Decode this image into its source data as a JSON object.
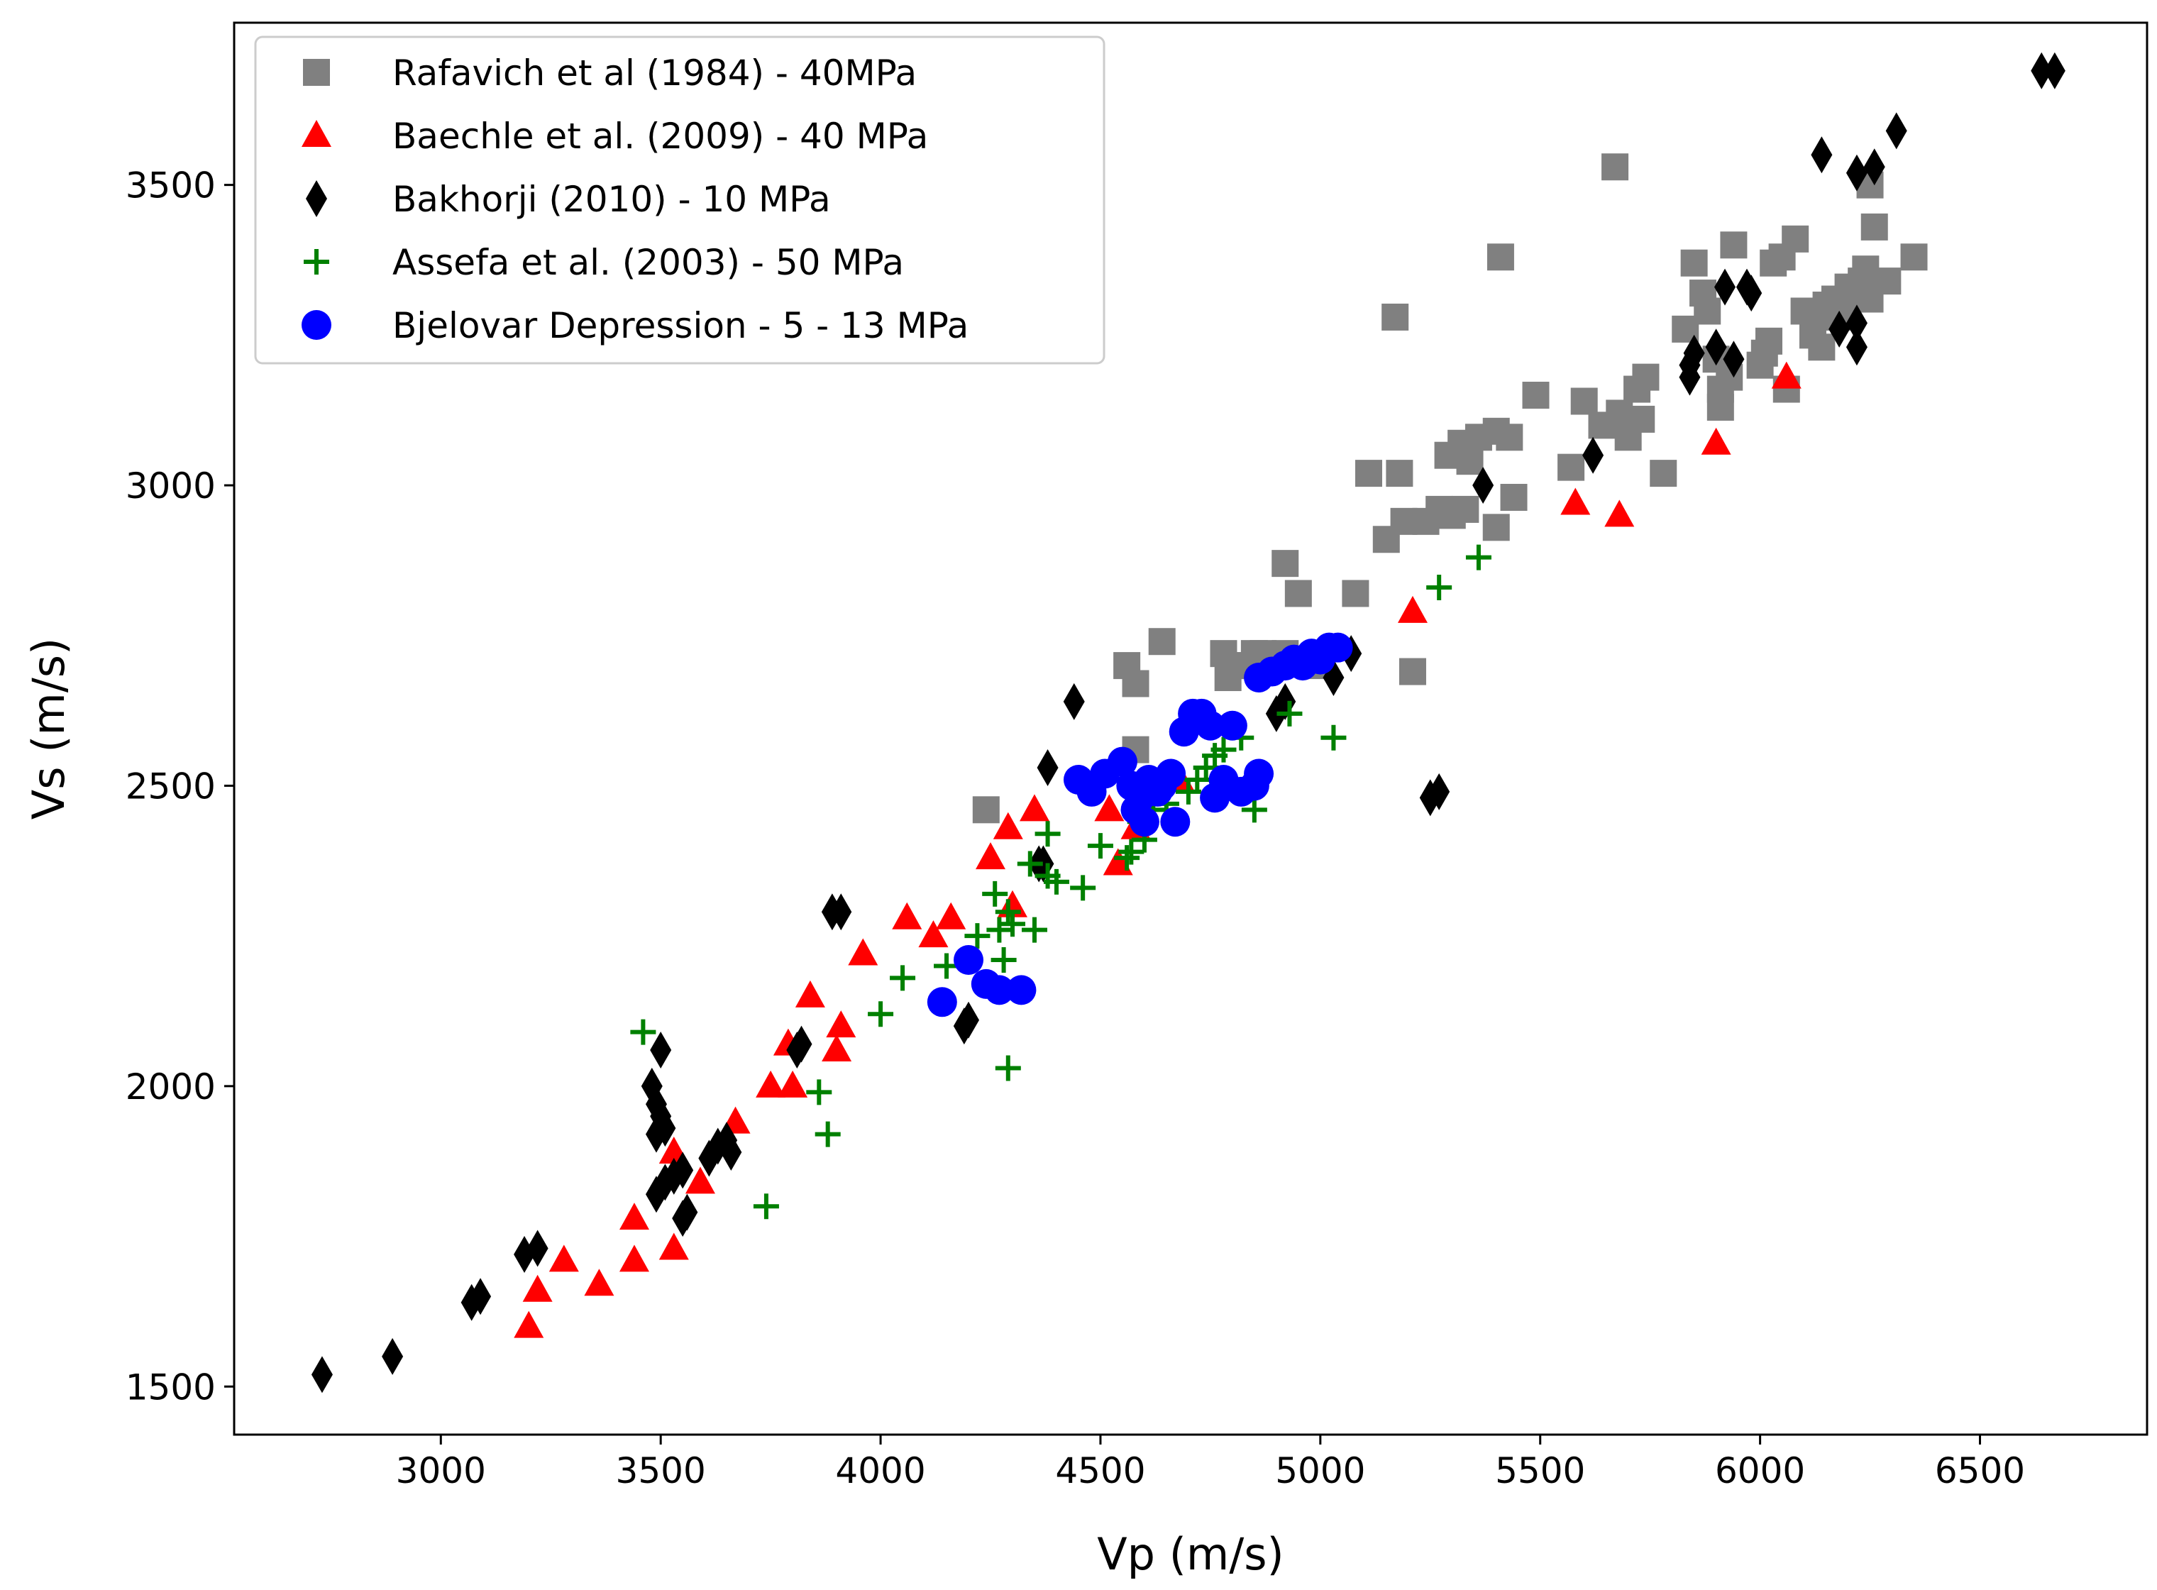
{
  "chart_data": {
    "type": "scatter",
    "title": "",
    "xlabel": "Vp (m/s)",
    "ylabel": "Vs (m/s)",
    "xlim": [
      2530,
      6880
    ],
    "ylim": [
      1420,
      3770
    ],
    "xticks": [
      3000,
      3500,
      4000,
      4500,
      5000,
      5500,
      6000,
      6500
    ],
    "yticks": [
      1500,
      2000,
      2500,
      3000,
      3500
    ],
    "legend_position": "top-left",
    "series": [
      {
        "name": "Rafavich et al (1984) - 40MPa",
        "marker": "square",
        "color": "#808080",
        "points": [
          [
            4240,
            2460
          ],
          [
            4580,
            2560
          ],
          [
            4560,
            2700
          ],
          [
            4580,
            2670
          ],
          [
            4640,
            2740
          ],
          [
            4780,
            2720
          ],
          [
            4790,
            2680
          ],
          [
            4840,
            2700
          ],
          [
            4870,
            2720
          ],
          [
            4900,
            2700
          ],
          [
            4920,
            2720
          ],
          [
            4950,
            2710
          ],
          [
            4980,
            2700
          ],
          [
            4950,
            2820
          ],
          [
            5080,
            2820
          ],
          [
            4920,
            2870
          ],
          [
            5210,
            2690
          ],
          [
            5110,
            3020
          ],
          [
            5180,
            3020
          ],
          [
            5150,
            2910
          ],
          [
            5190,
            2940
          ],
          [
            5240,
            2940
          ],
          [
            5270,
            2960
          ],
          [
            5300,
            2950
          ],
          [
            5330,
            2960
          ],
          [
            5290,
            3050
          ],
          [
            5320,
            3070
          ],
          [
            5340,
            3040
          ],
          [
            5360,
            3080
          ],
          [
            5400,
            3090
          ],
          [
            5410,
            3380
          ],
          [
            5430,
            3080
          ],
          [
            5400,
            2930
          ],
          [
            5440,
            2980
          ],
          [
            5170,
            3280
          ],
          [
            5490,
            3150
          ],
          [
            5570,
            3030
          ],
          [
            5600,
            3140
          ],
          [
            5640,
            3100
          ],
          [
            5680,
            3120
          ],
          [
            5700,
            3080
          ],
          [
            5720,
            3160
          ],
          [
            5730,
            3110
          ],
          [
            5740,
            3180
          ],
          [
            5670,
            3530
          ],
          [
            5780,
            3020
          ],
          [
            5830,
            3260
          ],
          [
            5850,
            3370
          ],
          [
            5870,
            3320
          ],
          [
            5880,
            3290
          ],
          [
            5900,
            3210
          ],
          [
            5910,
            3130
          ],
          [
            5910,
            3160
          ],
          [
            5930,
            3180
          ],
          [
            5940,
            3400
          ],
          [
            6000,
            3200
          ],
          [
            6010,
            3220
          ],
          [
            6020,
            3240
          ],
          [
            6030,
            3370
          ],
          [
            6050,
            3380
          ],
          [
            6060,
            3160
          ],
          [
            6080,
            3410
          ],
          [
            6100,
            3290
          ],
          [
            6120,
            3250
          ],
          [
            6130,
            3280
          ],
          [
            6140,
            3230
          ],
          [
            6150,
            3300
          ],
          [
            6170,
            3310
          ],
          [
            6180,
            3280
          ],
          [
            6200,
            3330
          ],
          [
            6210,
            3310
          ],
          [
            6230,
            3340
          ],
          [
            6240,
            3360
          ],
          [
            6250,
            3310
          ],
          [
            6250,
            3500
          ],
          [
            6260,
            3430
          ],
          [
            6290,
            3340
          ],
          [
            6350,
            3380
          ],
          [
            4850,
            2720
          ],
          [
            4810,
            2700
          ]
        ]
      },
      {
        "name": "Baechle et al. (2009) - 40 MPa",
        "marker": "triangle",
        "color": "#ff0000",
        "points": [
          [
            3200,
            1600
          ],
          [
            3220,
            1660
          ],
          [
            3280,
            1710
          ],
          [
            3360,
            1670
          ],
          [
            3440,
            1710
          ],
          [
            3440,
            1780
          ],
          [
            3530,
            1730
          ],
          [
            3530,
            1890
          ],
          [
            3590,
            1840
          ],
          [
            3670,
            1940
          ],
          [
            3750,
            2000
          ],
          [
            3790,
            2070
          ],
          [
            3800,
            2000
          ],
          [
            3840,
            2150
          ],
          [
            3900,
            2060
          ],
          [
            3910,
            2100
          ],
          [
            3960,
            2220
          ],
          [
            4060,
            2280
          ],
          [
            4120,
            2250
          ],
          [
            4160,
            2280
          ],
          [
            4250,
            2380
          ],
          [
            4290,
            2430
          ],
          [
            4300,
            2300
          ],
          [
            4350,
            2460
          ],
          [
            4520,
            2460
          ],
          [
            4540,
            2370
          ],
          [
            4580,
            2430
          ],
          [
            5210,
            2790
          ],
          [
            5580,
            2970
          ],
          [
            5680,
            2950
          ],
          [
            5900,
            3070
          ],
          [
            6060,
            3180
          ],
          [
            4680,
            2510
          ]
        ]
      },
      {
        "name": "Bakhorji (2010) - 10 MPa",
        "marker": "diamond",
        "color": "#000000",
        "points": [
          [
            2730,
            1520
          ],
          [
            2890,
            1550
          ],
          [
            3070,
            1640
          ],
          [
            3090,
            1650
          ],
          [
            3190,
            1720
          ],
          [
            3220,
            1730
          ],
          [
            3480,
            2000
          ],
          [
            3490,
            1970
          ],
          [
            3490,
            1920
          ],
          [
            3500,
            1950
          ],
          [
            3500,
            2060
          ],
          [
            3510,
            1930
          ],
          [
            3490,
            1820
          ],
          [
            3510,
            1840
          ],
          [
            3530,
            1850
          ],
          [
            3550,
            1860
          ],
          [
            3550,
            1780
          ],
          [
            3560,
            1790
          ],
          [
            3610,
            1880
          ],
          [
            3630,
            1900
          ],
          [
            3650,
            1910
          ],
          [
            3660,
            1890
          ],
          [
            3810,
            2060
          ],
          [
            3820,
            2070
          ],
          [
            3890,
            2290
          ],
          [
            3910,
            2290
          ],
          [
            4190,
            2100
          ],
          [
            4200,
            2110
          ],
          [
            4360,
            2370
          ],
          [
            4370,
            2370
          ],
          [
            4380,
            2530
          ],
          [
            4440,
            2640
          ],
          [
            4580,
            2470
          ],
          [
            4900,
            2620
          ],
          [
            4920,
            2640
          ],
          [
            5030,
            2680
          ],
          [
            5070,
            2720
          ],
          [
            5250,
            2480
          ],
          [
            5270,
            2490
          ],
          [
            5370,
            3000
          ],
          [
            5620,
            3050
          ],
          [
            5840,
            3200
          ],
          [
            5840,
            3180
          ],
          [
            5850,
            3220
          ],
          [
            5900,
            3230
          ],
          [
            5920,
            3330
          ],
          [
            5940,
            3210
          ],
          [
            5970,
            3330
          ],
          [
            5980,
            3320
          ],
          [
            6140,
            3550
          ],
          [
            6180,
            3260
          ],
          [
            6220,
            3270
          ],
          [
            6220,
            3230
          ],
          [
            6220,
            3520
          ],
          [
            6260,
            3530
          ],
          [
            6310,
            3590
          ],
          [
            6640,
            3690
          ],
          [
            6670,
            3690
          ]
        ]
      },
      {
        "name": "Assefa et al. (2003) - 50 MPa",
        "marker": "plus",
        "color": "#008000",
        "points": [
          [
            3460,
            2090
          ],
          [
            3740,
            1800
          ],
          [
            3860,
            1990
          ],
          [
            3880,
            1920
          ],
          [
            4000,
            2120
          ],
          [
            4050,
            2180
          ],
          [
            4150,
            2200
          ],
          [
            4220,
            2250
          ],
          [
            4260,
            2320
          ],
          [
            4270,
            2260
          ],
          [
            4280,
            2210
          ],
          [
            4290,
            2290
          ],
          [
            4290,
            2030
          ],
          [
            4300,
            2270
          ],
          [
            4340,
            2370
          ],
          [
            4350,
            2260
          ],
          [
            4380,
            2420
          ],
          [
            4380,
            2350
          ],
          [
            4400,
            2340
          ],
          [
            4460,
            2330
          ],
          [
            4500,
            2400
          ],
          [
            4560,
            2380
          ],
          [
            4570,
            2390
          ],
          [
            4590,
            2440
          ],
          [
            4620,
            2460
          ],
          [
            4650,
            2470
          ],
          [
            4700,
            2490
          ],
          [
            4720,
            2510
          ],
          [
            4740,
            2530
          ],
          [
            4760,
            2550
          ],
          [
            4780,
            2560
          ],
          [
            4820,
            2580
          ],
          [
            4850,
            2460
          ],
          [
            4930,
            2620
          ],
          [
            5030,
            2580
          ],
          [
            5270,
            2830
          ],
          [
            5360,
            2880
          ],
          [
            4600,
            2410
          ]
        ]
      },
      {
        "name": "Bjelovar Depression - 5 - 13 MPa",
        "marker": "circle",
        "color": "#0000ff",
        "points": [
          [
            4140,
            2140
          ],
          [
            4200,
            2210
          ],
          [
            4240,
            2170
          ],
          [
            4270,
            2160
          ],
          [
            4320,
            2160
          ],
          [
            4450,
            2510
          ],
          [
            4480,
            2490
          ],
          [
            4510,
            2520
          ],
          [
            4550,
            2540
          ],
          [
            4570,
            2500
          ],
          [
            4580,
            2460
          ],
          [
            4590,
            2480
          ],
          [
            4600,
            2440
          ],
          [
            4610,
            2510
          ],
          [
            4630,
            2490
          ],
          [
            4640,
            2500
          ],
          [
            4660,
            2520
          ],
          [
            4670,
            2440
          ],
          [
            4690,
            2590
          ],
          [
            4710,
            2620
          ],
          [
            4730,
            2620
          ],
          [
            4750,
            2600
          ],
          [
            4760,
            2480
          ],
          [
            4780,
            2510
          ],
          [
            4800,
            2600
          ],
          [
            4820,
            2490
          ],
          [
            4850,
            2500
          ],
          [
            4860,
            2520
          ],
          [
            4860,
            2680
          ],
          [
            4890,
            2690
          ],
          [
            4920,
            2700
          ],
          [
            4940,
            2710
          ],
          [
            4960,
            2700
          ],
          [
            4980,
            2720
          ],
          [
            5000,
            2710
          ],
          [
            5020,
            2730
          ],
          [
            5040,
            2730
          ]
        ]
      }
    ]
  }
}
